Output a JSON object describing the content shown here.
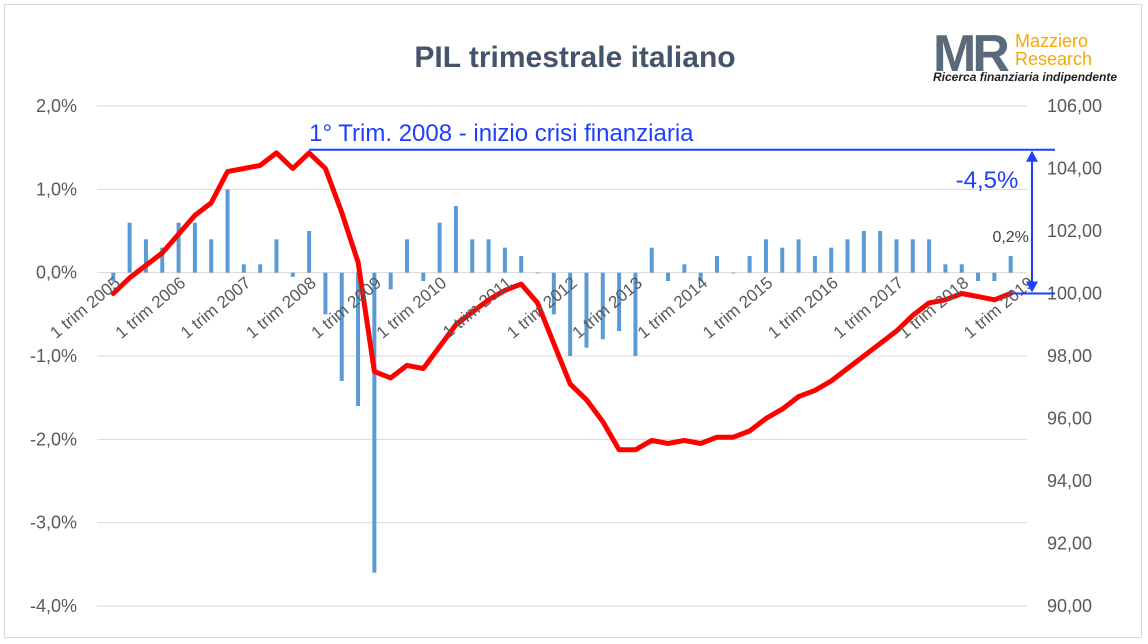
{
  "chart_data": {
    "type": "bar+line",
    "title": "PIL trimestrale italiano",
    "y_left": {
      "ticks": [
        "2,0%",
        "1,0%",
        "0,0%",
        "-1,0%",
        "-2,0%",
        "-3,0%",
        "-4,0%"
      ],
      "range": [
        -4.0,
        2.0
      ]
    },
    "y_right": {
      "ticks": [
        "106,00",
        "104,00",
        "102,00",
        "100,00",
        "98,00",
        "96,00",
        "94,00",
        "92,00",
        "90,00"
      ],
      "range": [
        90,
        106
      ]
    },
    "x_tick_labels": [
      "1 trim 2005",
      "1 trim 2006",
      "1 trim 2007",
      "1 trim 2008",
      "1 trim 2009",
      "1 trim 2010",
      "1 trim 2011",
      "1 trim 2012",
      "1 trim 2013",
      "1 trim 2014",
      "1 trim 2015",
      "1 trim 2016",
      "1 trim 2017",
      "1 trim 2018",
      "1 trim 2019"
    ],
    "x_tick_quarter_index": [
      0,
      4,
      8,
      12,
      16,
      20,
      24,
      28,
      32,
      36,
      40,
      44,
      48,
      52,
      56
    ],
    "series": [
      {
        "type": "bar",
        "axis": "left",
        "color": "#5b9bd5",
        "values": [
          -0.1,
          0.6,
          0.4,
          0.3,
          0.6,
          0.6,
          0.4,
          1.0,
          0.1,
          0.1,
          0.4,
          -0.05,
          0.5,
          -0.5,
          -1.3,
          -1.6,
          -3.6,
          -0.2,
          0.4,
          -0.1,
          0.6,
          0.8,
          0.4,
          0.4,
          0.3,
          0.2,
          0.0,
          -0.5,
          -1.0,
          -0.9,
          -0.8,
          -0.7,
          -1.0,
          0.3,
          -0.1,
          0.1,
          -0.1,
          0.2,
          0.0,
          0.2,
          0.4,
          0.3,
          0.4,
          0.2,
          0.3,
          0.4,
          0.5,
          0.5,
          0.4,
          0.4,
          0.4,
          0.1,
          0.1,
          -0.1,
          -0.1,
          0.2
        ]
      },
      {
        "type": "line",
        "axis": "right",
        "color": "#ff0000",
        "values": [
          100.0,
          100.5,
          100.9,
          101.3,
          101.9,
          102.5,
          102.9,
          103.9,
          104.0,
          104.1,
          104.5,
          104.0,
          104.5,
          104.0,
          102.6,
          101.0,
          97.5,
          97.3,
          97.7,
          97.6,
          98.3,
          99.0,
          99.4,
          99.8,
          100.1,
          100.3,
          99.7,
          98.4,
          97.1,
          96.6,
          95.9,
          95.0,
          95.0,
          95.3,
          95.2,
          95.3,
          95.2,
          95.4,
          95.4,
          95.6,
          96.0,
          96.3,
          96.7,
          96.9,
          97.2,
          97.6,
          98.0,
          98.4,
          98.8,
          99.3,
          99.7,
          99.8,
          100.0,
          99.9,
          99.8,
          100.0
        ]
      }
    ],
    "annotations": {
      "crisis_label": "1° Trim. 2008 - inizio crisi finanziaria",
      "drop_label": "-4,5%",
      "last_value_label": "0,2%",
      "reference_high": 104.6,
      "reference_low": 100.0
    }
  },
  "logo": {
    "mark": "MR",
    "name_line1": "Mazziero",
    "name_line2": "Research",
    "tagline": "Ricerca finanziaria indipendente"
  }
}
